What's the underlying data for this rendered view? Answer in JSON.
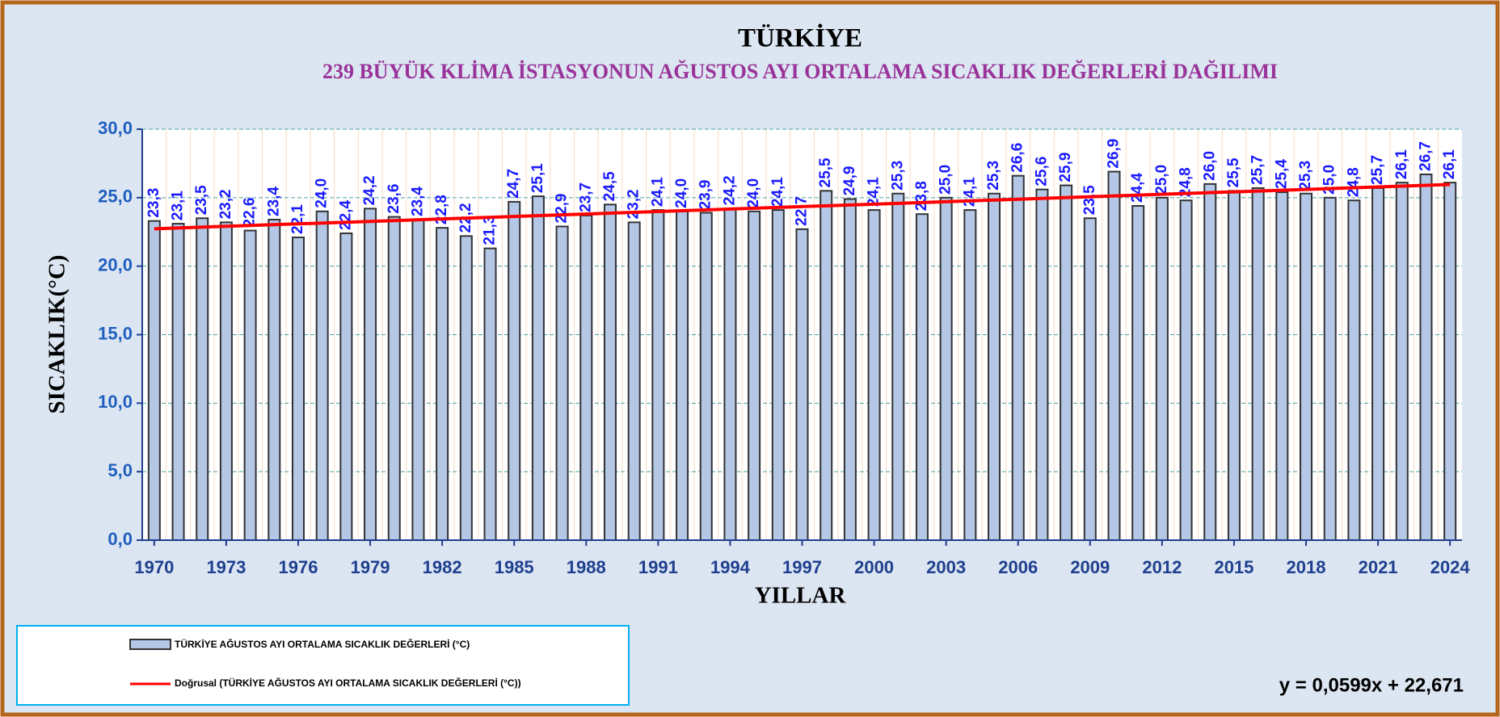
{
  "chart_data": {
    "type": "bar",
    "title": "TÜRKİYE",
    "subtitle": "239 BÜYÜK KLİMA İSTASYONUN  AĞUSTOS  AYI ORTALAMA SICAKLIK DEĞERLERİ  DAĞILIMI",
    "x_label": "YILLAR",
    "y_label": "SICAKLIK(°C)",
    "categories": [
      "1970",
      null,
      null,
      "1973",
      null,
      null,
      "1976",
      null,
      null,
      "1979",
      null,
      null,
      "1982",
      null,
      null,
      "1985",
      null,
      null,
      "1988",
      null,
      null,
      "1991",
      null,
      null,
      "1994",
      null,
      null,
      "1997",
      null,
      null,
      "2000",
      null,
      null,
      "2003",
      null,
      null,
      "2006",
      null,
      null,
      "2009",
      null,
      null,
      "2012",
      null,
      null,
      "2015",
      null,
      null,
      "2018",
      null,
      null,
      "2021",
      null,
      null,
      "2024"
    ],
    "series": [
      {
        "name": "TÜRKİYE AĞUSTOS AYI ORTALAMA SICAKLIK DEĞERLERİ (°C)",
        "color": "#b4c7e7",
        "values": [
          23.3,
          23.1,
          23.5,
          23.2,
          22.6,
          23.4,
          22.1,
          24.0,
          22.4,
          24.2,
          23.6,
          23.4,
          22.8,
          22.2,
          21.3,
          24.7,
          25.1,
          22.9,
          23.7,
          24.5,
          23.2,
          24.1,
          24.0,
          23.9,
          24.2,
          24.0,
          24.1,
          22.7,
          25.5,
          24.9,
          24.1,
          25.3,
          23.8,
          25.0,
          24.1,
          25.3,
          26.6,
          25.6,
          25.9,
          23.5,
          26.9,
          24.4,
          25.0,
          24.8,
          26.0,
          25.5,
          25.7,
          25.4,
          25.3,
          25.0,
          24.8,
          25.7,
          26.1,
          26.7,
          26.1
        ],
        "value_labels": [
          "23,3",
          "23,1",
          "23,5",
          "23,2",
          "22,6",
          "23,4",
          "22,1",
          "24,0",
          "22,4",
          "24,2",
          "23,6",
          "23,4",
          "22,8",
          "22,2",
          "21,3",
          "24,7",
          "25,1",
          "22,9",
          "23,7",
          "24,5",
          "23,2",
          "24,1",
          "24,0",
          "23,9",
          "24,2",
          "24,0",
          "24,1",
          "22,7",
          "25,5",
          "24,9",
          "24,1",
          "25,3",
          "23,8",
          "25,0",
          "24,1",
          "25,3",
          "26,6",
          "25,6",
          "25,9",
          "23,5",
          "26,9",
          "24,4",
          "25,0",
          "24,8",
          "26,0",
          "25,5",
          "25,7",
          "25,4",
          "25,3",
          "25,0",
          "24,8",
          "25,7",
          "26,1",
          "26,7",
          "26,1"
        ]
      }
    ],
    "trend": {
      "name": "Doğrusal (TÜRKİYE AĞUSTOS AYI ORTALAMA SICAKLIK DEĞERLERİ (°C))",
      "color": "#ff0000",
      "slope": 0.0599,
      "intercept": 22.671
    },
    "annotation": "y = 0,0599x + 22,671",
    "ylim": [
      0,
      30
    ],
    "yticks": [
      {
        "value": 0,
        "label": "0,0"
      },
      {
        "value": 5,
        "label": "5,0"
      },
      {
        "value": 10,
        "label": "10,0"
      },
      {
        "value": 15,
        "label": "15,0"
      },
      {
        "value": 20,
        "label": "20,0"
      },
      {
        "value": 25,
        "label": "25,0"
      },
      {
        "value": 30,
        "label": "30,0"
      }
    ],
    "grid": true
  }
}
